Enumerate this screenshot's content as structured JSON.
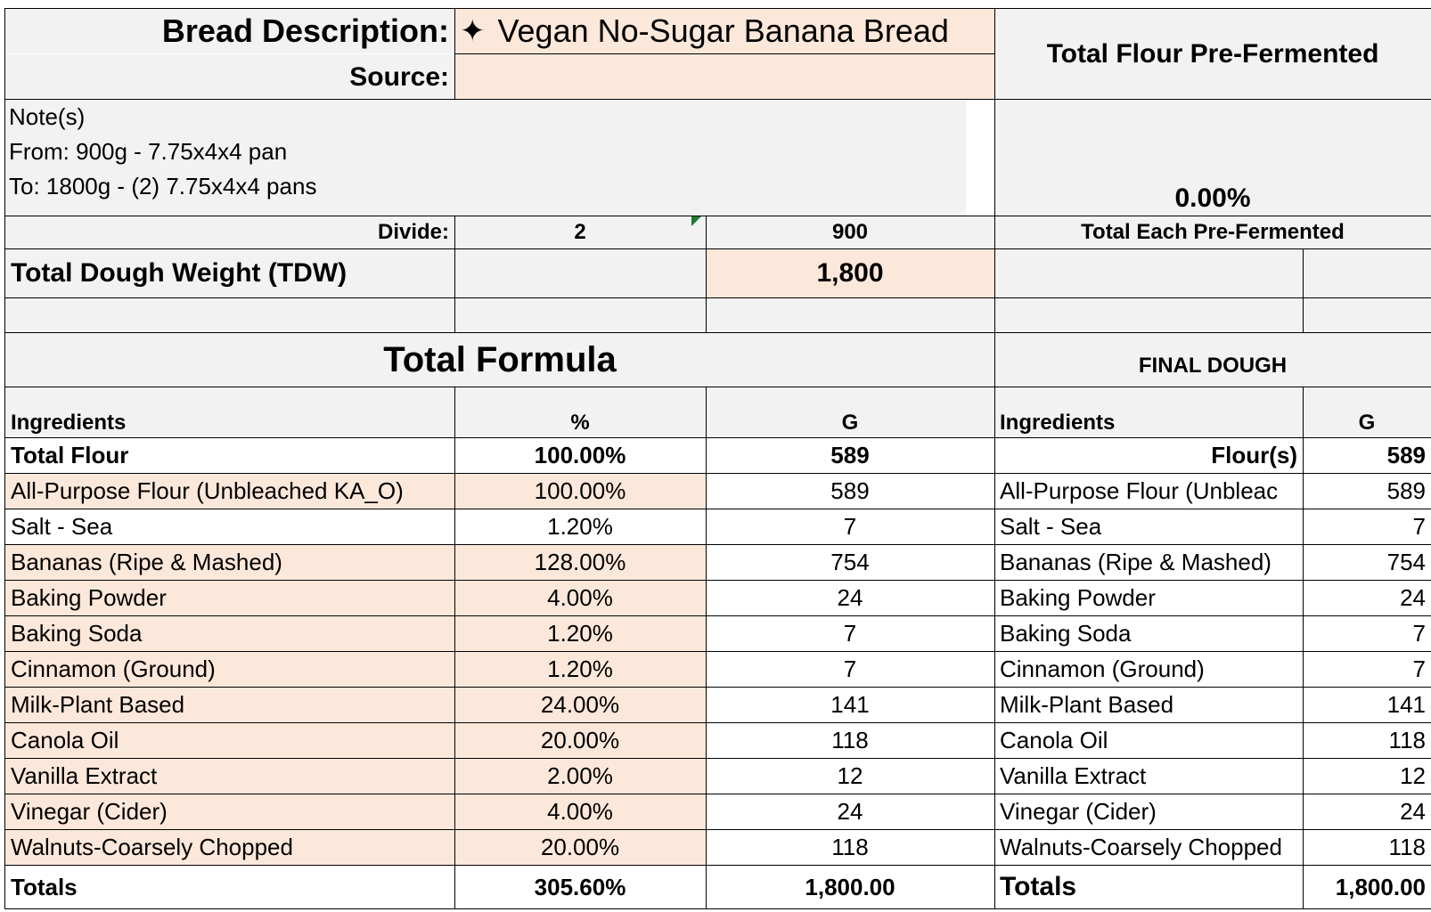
{
  "header": {
    "bread_description_label": "Bread Description:",
    "bread_description_value": "Vegan No-Sugar Banana Bread",
    "sparkle_icon": "sparkles-icon",
    "source_label": "Source:",
    "source_value": "",
    "total_flour_pre_fermented_label": "Total Flour Pre-Fermented",
    "total_flour_pre_fermented_value": "0.00%"
  },
  "notes": {
    "lines": [
      "Note(s)",
      "From: 900g -  7.75x4x4 pan",
      "To: 1800g - (2) 7.75x4x4 pans"
    ]
  },
  "divide": {
    "label": "Divide:",
    "count": "2",
    "each": "900",
    "total_each_pre_fermented_label": "Total Each Pre-Fermented"
  },
  "tdw": {
    "label": "Total Dough Weight (TDW)",
    "value": "1,800"
  },
  "total_formula": {
    "title": "Total Formula",
    "headers": {
      "ingredients": "Ingredients",
      "percent": "%",
      "grams": "G"
    },
    "rows": [
      {
        "name": "Total Flour",
        "percent": "100.00%",
        "grams": "589"
      },
      {
        "name": "All-Purpose Flour  (Unbleached KA_O)",
        "percent": "100.00%",
        "grams": "589"
      },
      {
        "name": "Salt - Sea",
        "percent": "1.20%",
        "grams": "7"
      },
      {
        "name": "Bananas (Ripe & Mashed)",
        "percent": "128.00%",
        "grams": "754"
      },
      {
        "name": "Baking Powder",
        "percent": "4.00%",
        "grams": "24"
      },
      {
        "name": "Baking Soda",
        "percent": "1.20%",
        "grams": "7"
      },
      {
        "name": "Cinnamon (Ground)",
        "percent": "1.20%",
        "grams": "7"
      },
      {
        "name": "Milk-Plant Based",
        "percent": "24.00%",
        "grams": "141"
      },
      {
        "name": "Canola Oil",
        "percent": "20.00%",
        "grams": "118"
      },
      {
        "name": "Vanilla Extract",
        "percent": "2.00%",
        "grams": "12"
      },
      {
        "name": "Vinegar (Cider)",
        "percent": "4.00%",
        "grams": "24"
      },
      {
        "name": "Walnuts-Coarsely Chopped",
        "percent": "20.00%",
        "grams": "118"
      }
    ],
    "totals": {
      "label": "Totals",
      "percent": "305.60%",
      "grams": "1,800.00"
    }
  },
  "final_dough": {
    "title": "FINAL DOUGH",
    "headers": {
      "ingredients": "Ingredients",
      "grams": "G"
    },
    "rows": [
      {
        "name": "Flour(s)",
        "grams": "589"
      },
      {
        "name": "All-Purpose Flour  (Unbleac",
        "grams": "589"
      },
      {
        "name": "Salt - Sea",
        "grams": "7"
      },
      {
        "name": "Bananas (Ripe & Mashed)",
        "grams": "754"
      },
      {
        "name": "Baking Powder",
        "grams": "24"
      },
      {
        "name": "Baking Soda",
        "grams": "7"
      },
      {
        "name": "Cinnamon (Ground)",
        "grams": "7"
      },
      {
        "name": "Milk-Plant Based",
        "grams": "141"
      },
      {
        "name": "Canola Oil",
        "grams": "118"
      },
      {
        "name": "Vanilla Extract",
        "grams": "12"
      },
      {
        "name": "Vinegar (Cider)",
        "grams": "24"
      },
      {
        "name": "Walnuts-Coarsely Chopped",
        "grams": "118"
      }
    ],
    "totals": {
      "label": "Totals",
      "grams": "1,800.00"
    }
  },
  "colors": {
    "gray_fill": "#f2f2f2",
    "peach_fill": "#fce8da",
    "grid_line": "#000000",
    "comment_marker": "#1e7b34"
  }
}
